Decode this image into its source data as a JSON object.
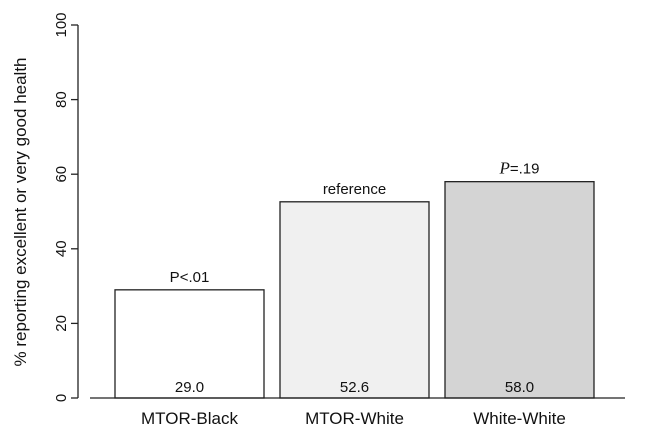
{
  "chart_data": {
    "type": "bar",
    "categories": [
      "MTOR-Black",
      "MTOR-White",
      "White-White"
    ],
    "values": [
      29.0,
      52.6,
      58.0
    ],
    "value_labels": [
      "29.0",
      "52.6",
      "58.0"
    ],
    "annotations": [
      {
        "prefix": "P",
        "prefix_italic": false,
        "rest": "<.01"
      },
      {
        "prefix": "",
        "prefix_italic": false,
        "rest": "reference"
      },
      {
        "prefix": "P",
        "prefix_italic": true,
        "rest": "=.19"
      }
    ],
    "bar_colors": [
      "#ffffff",
      "#f0f0f0",
      "#d4d4d4"
    ],
    "title": "",
    "xlabel": "",
    "ylabel": "% reporting excellent or very good health",
    "ylim": [
      0,
      100
    ],
    "yticks": [
      0,
      20,
      40,
      60,
      80,
      100
    ],
    "grid": false,
    "legend": "none"
  }
}
